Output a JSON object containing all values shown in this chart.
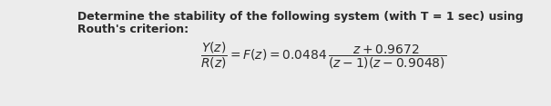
{
  "background_color": "#ececec",
  "text_color": "#2a2a2a",
  "line1": "Determine the stability of the following system (with T = 1 sec) using",
  "line2": "Routh's criterion:",
  "fontsize_body": 9.0,
  "fontsize_math": 10.0
}
